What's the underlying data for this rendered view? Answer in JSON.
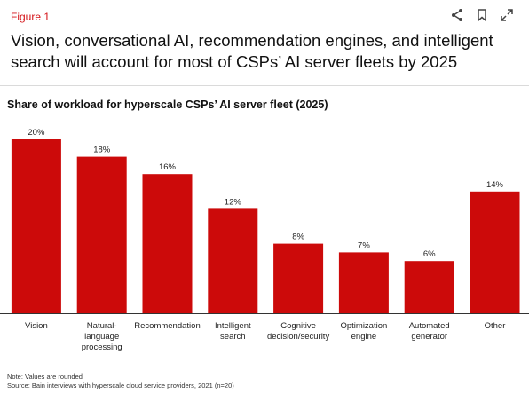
{
  "header": {
    "figure_label": "Figure 1",
    "headline": "Vision, conversational AI, recommendation engines, and intelligent search will account for most of CSPs’ AI server fleets by 2025",
    "actions": [
      {
        "name": "share-icon"
      },
      {
        "name": "bookmark-icon"
      },
      {
        "name": "expand-icon"
      }
    ]
  },
  "chart_data": {
    "type": "bar",
    "title": "Share of workload for hyperscale CSPs’ AI server fleet (2025)",
    "categories": [
      [
        "Vision"
      ],
      [
        "Natural-",
        "language",
        "processing"
      ],
      [
        "Recommendation"
      ],
      [
        "Intelligent",
        "search"
      ],
      [
        "Cognitive",
        "decision/security"
      ],
      [
        "Optimization",
        "engine"
      ],
      [
        "Automated",
        "generator"
      ],
      [
        "Other"
      ]
    ],
    "values": [
      20,
      18,
      16,
      12,
      8,
      7,
      6,
      14
    ],
    "value_labels": [
      "20%",
      "18%",
      "16%",
      "12%",
      "8%",
      "7%",
      "6%",
      "14%"
    ],
    "ylim": [
      0,
      20
    ],
    "bar_color": "#cc0a0a",
    "grid": false
  },
  "notes": {
    "note": "Note: Values are rounded",
    "source": "Source: Bain interviews with hyperscale cloud service providers, 2021 (n=20)"
  }
}
